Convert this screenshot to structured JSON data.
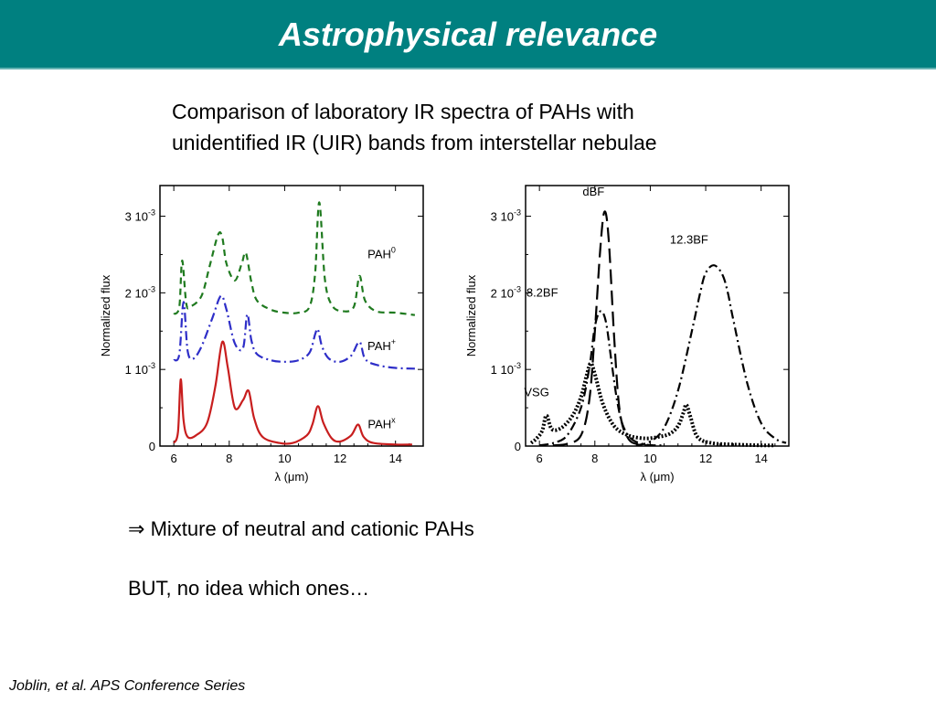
{
  "slide": {
    "title": "Astrophysical relevance",
    "intro_line1": "Comparison of laboratory IR spectra of PAHs with",
    "intro_line2": "unidentified IR (UIR) bands from interstellar nebulae",
    "arrow_symbol": "⇒",
    "conclusion": "Mixture of neutral and cationic PAHs",
    "caveat": "BUT, no idea which ones…",
    "citation": "Joblin, et al. APS Conference Series"
  },
  "chart_data": [
    {
      "type": "line",
      "xlabel": "λ (μm)",
      "ylabel": "Normalized flux",
      "xlim": [
        5.5,
        15
      ],
      "ylim": [
        0,
        0.0034
      ],
      "xticks": [
        6,
        8,
        10,
        12,
        14
      ],
      "yticks": [
        {
          "value": 0,
          "label": "0"
        },
        {
          "value": 0.001,
          "label": "1 10"
        },
        {
          "value": 0.002,
          "label": "2 10"
        },
        {
          "value": 0.003,
          "label": "3 10"
        }
      ],
      "ytick_exponent": "-3",
      "series": [
        {
          "name": "PAH",
          "sup": "0",
          "color": "#1f7a1f",
          "dash": "7,5",
          "x": [
            6.0,
            6.2,
            6.3,
            6.45,
            6.6,
            7.0,
            7.3,
            7.6,
            7.75,
            7.9,
            8.2,
            8.45,
            8.6,
            8.8,
            9.0,
            9.5,
            10.0,
            10.5,
            10.9,
            11.1,
            11.25,
            11.45,
            11.7,
            12.1,
            12.5,
            12.7,
            12.9,
            13.3,
            14.0,
            14.7
          ],
          "y": [
            0.00172,
            0.00182,
            0.00242,
            0.00186,
            0.00182,
            0.00196,
            0.00236,
            0.00276,
            0.00272,
            0.00238,
            0.00216,
            0.00238,
            0.00252,
            0.00214,
            0.0019,
            0.00178,
            0.00174,
            0.00174,
            0.00182,
            0.00226,
            0.00318,
            0.00218,
            0.00184,
            0.00176,
            0.00182,
            0.00222,
            0.0019,
            0.00176,
            0.00174,
            0.00171
          ]
        },
        {
          "name": "PAH",
          "sup": "+",
          "color": "#2e2ec8",
          "dash": "10,4,2,4",
          "x": [
            6.0,
            6.2,
            6.35,
            6.5,
            6.7,
            7.0,
            7.4,
            7.7,
            7.9,
            8.2,
            8.5,
            8.65,
            8.8,
            9.0,
            9.5,
            10.0,
            10.5,
            10.9,
            11.1,
            11.2,
            11.35,
            11.6,
            12.0,
            12.4,
            12.7,
            12.9,
            13.3,
            14.0,
            14.7
          ],
          "y": [
            0.00112,
            0.0012,
            0.00188,
            0.00124,
            0.00114,
            0.0013,
            0.00168,
            0.00196,
            0.00178,
            0.00134,
            0.00128,
            0.00172,
            0.00138,
            0.0012,
            0.00112,
            0.0011,
            0.00112,
            0.00122,
            0.00146,
            0.00152,
            0.0013,
            0.00114,
            0.0011,
            0.00118,
            0.00136,
            0.00114,
            0.00106,
            0.00102,
            0.00101
          ]
        },
        {
          "name": "PAH",
          "sup": "x",
          "color": "#c81e1e",
          "dash": "",
          "x": [
            6.0,
            6.15,
            6.25,
            6.35,
            6.5,
            6.8,
            7.2,
            7.5,
            7.75,
            7.95,
            8.2,
            8.5,
            8.7,
            8.9,
            9.2,
            9.8,
            10.3,
            10.8,
            11.0,
            11.2,
            11.4,
            11.7,
            12.0,
            12.4,
            12.65,
            12.85,
            13.2,
            14.0,
            14.6
          ],
          "y": [
            4e-05,
            0.00018,
            0.00087,
            0.00034,
            0.00012,
            0.00014,
            0.0003,
            0.00078,
            0.00136,
            0.00102,
            0.0005,
            0.0006,
            0.00072,
            0.00036,
            0.00012,
            4e-05,
            4e-05,
            0.00014,
            0.00028,
            0.00052,
            0.0003,
            0.0001,
            6e-05,
            0.00014,
            0.00028,
            0.00012,
            4e-05,
            2e-05,
            2e-05
          ]
        }
      ],
      "series_label_positions": [
        {
          "x": 13.5,
          "y": 0.00245
        },
        {
          "x": 13.5,
          "y": 0.00125
        },
        {
          "x": 13.5,
          "y": 0.00023
        }
      ]
    },
    {
      "type": "line",
      "xlabel": "λ (μm)",
      "ylabel": "Normalized flux",
      "xlim": [
        5.5,
        15
      ],
      "ylim": [
        0,
        0.0034
      ],
      "xticks": [
        6,
        8,
        10,
        12,
        14
      ],
      "yticks": [
        {
          "value": 0,
          "label": "0"
        },
        {
          "value": 0.001,
          "label": "1 10"
        },
        {
          "value": 0.002,
          "label": "2 10"
        },
        {
          "value": 0.003,
          "label": "3 10"
        }
      ],
      "ytick_exponent": "-3",
      "series": [
        {
          "name": "dBF",
          "color": "#000000",
          "dash": "16,7",
          "x": [
            6.5,
            7.0,
            7.5,
            7.8,
            8.0,
            8.2,
            8.35,
            8.5,
            8.7,
            8.9,
            9.2,
            9.6,
            10.0
          ],
          "y": [
            1e-05,
            3e-05,
            0.00014,
            0.0006,
            0.0015,
            0.0026,
            0.00306,
            0.0027,
            0.0014,
            0.00045,
            0.0001,
            2e-05,
            1e-05
          ]
        },
        {
          "name": "8.2BF",
          "color": "#000000",
          "dash": "10,4,2,4",
          "x": [
            6.0,
            6.5,
            7.0,
            7.5,
            7.8,
            8.0,
            8.2,
            8.4,
            8.6,
            8.8,
            9.0,
            9.3,
            9.7,
            10.1,
            10.5
          ],
          "y": [
            1e-05,
            4e-05,
            0.00014,
            0.0005,
            0.00102,
            0.00156,
            0.00176,
            0.00162,
            0.0011,
            0.0006,
            0.00028,
            0.0001,
            3e-05,
            1e-05,
            1e-05
          ]
        },
        {
          "name": "12.3BF",
          "color": "#000000",
          "dash": "10,4,2,4",
          "x": [
            9.5,
            10.0,
            10.5,
            11.0,
            11.5,
            11.8,
            12.0,
            12.3,
            12.6,
            12.8,
            13.0,
            13.5,
            14.0,
            14.5,
            14.9
          ],
          "y": [
            1e-05,
            6e-05,
            0.00024,
            0.00072,
            0.0015,
            0.002,
            0.00226,
            0.00236,
            0.00224,
            0.002,
            0.00164,
            0.00082,
            0.0003,
            0.0001,
            4e-05
          ]
        },
        {
          "name": "VSG",
          "color": "#000000",
          "dash": "2,2",
          "width": 4,
          "x": [
            5.7,
            5.9,
            6.1,
            6.25,
            6.45,
            6.8,
            7.2,
            7.5,
            7.7,
            7.85,
            8.0,
            8.3,
            8.7,
            9.2,
            9.8,
            10.3,
            10.7,
            11.0,
            11.2,
            11.3,
            11.45,
            11.7,
            12.2,
            13.0,
            14.0,
            14.5
          ],
          "y": [
            4e-05,
            0.0001,
            0.0002,
            0.0004,
            0.00022,
            0.00024,
            0.0004,
            0.00064,
            0.00092,
            0.00108,
            0.00094,
            0.00054,
            0.00026,
            0.00014,
            0.0001,
            0.00012,
            0.00016,
            0.00026,
            0.00044,
            0.00054,
            0.00038,
            0.00012,
            4e-05,
            2e-05,
            1e-05,
            1e-05
          ]
        }
      ],
      "series_label_positions": [
        {
          "x": 7.95,
          "y": 0.00327
        },
        {
          "x": 6.1,
          "y": 0.00195
        },
        {
          "x": 11.4,
          "y": 0.00264
        },
        {
          "x": 5.9,
          "y": 0.00065
        }
      ]
    }
  ]
}
